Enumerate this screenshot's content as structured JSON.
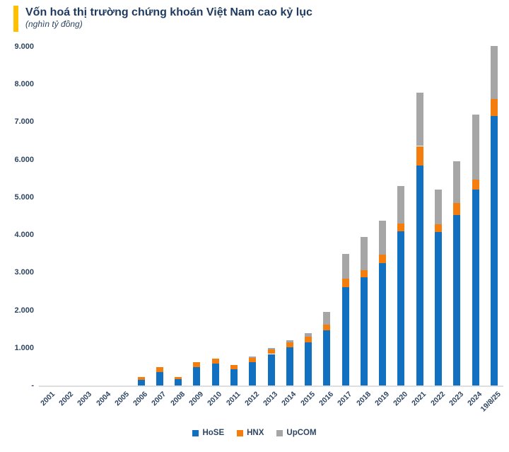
{
  "header": {
    "title": "Vốn hoá thị trường chứng khoán Việt Nam cao kỷ lục",
    "subtitle": "(nghìn tỷ đồng)",
    "accent_color": "#FFC000"
  },
  "chart_data": {
    "type": "bar",
    "stacked": true,
    "title": "Vốn hoá thị trường chứng khoán Việt Nam cao kỷ lục",
    "unit_label": "(nghìn tỷ đồng)",
    "categories": [
      "2001",
      "2002",
      "2003",
      "2004",
      "2005",
      "2006",
      "2007",
      "2008",
      "2009",
      "2010",
      "2011",
      "2012",
      "2013",
      "2014",
      "2015",
      "2016",
      "2017",
      "2018",
      "2019",
      "2020",
      "2021",
      "2022",
      "2023",
      "2024",
      "19/8/25"
    ],
    "series": [
      {
        "name": "HoSE",
        "color": "#1170C0",
        "values": [
          2,
          3,
          2,
          4,
          7,
          148,
          364,
          169,
          494,
          580,
          440,
          620,
          836,
          1010,
          1148,
          1462,
          2610,
          2872,
          3250,
          4094,
          5840,
          4070,
          4525,
          5210,
          7165
        ]
      },
      {
        "name": "HNX",
        "color": "#F57D0D",
        "values": [
          0,
          0,
          0,
          0,
          2,
          73,
          130,
          56,
          125,
          138,
          100,
          113,
          113,
          145,
          156,
          158,
          220,
          188,
          220,
          207,
          520,
          220,
          325,
          250,
          440
        ]
      },
      {
        "name": "UpCOM",
        "color": "#A6A6A6",
        "values": [
          0,
          0,
          0,
          0,
          0,
          0,
          0,
          0,
          0,
          0,
          0,
          45,
          43,
          43,
          81,
          333,
          671,
          878,
          913,
          1004,
          1420,
          920,
          1115,
          1735,
          1410
        ]
      }
    ],
    "ylim": [
      0,
      9000
    ],
    "yticks": [
      {
        "value": 0,
        "label": "-"
      },
      {
        "value": 1000,
        "label": "1.000"
      },
      {
        "value": 2000,
        "label": "2.000"
      },
      {
        "value": 3000,
        "label": "3.000"
      },
      {
        "value": 4000,
        "label": "4.000"
      },
      {
        "value": 5000,
        "label": "5.000"
      },
      {
        "value": 6000,
        "label": "6.000"
      },
      {
        "value": 7000,
        "label": "7.000"
      },
      {
        "value": 8000,
        "label": "8.000"
      },
      {
        "value": 9000,
        "label": "9.000"
      }
    ],
    "grid": false,
    "legend_position": "bottom",
    "axis_line_color": "#DEDEDE",
    "label_color": "#2E4562",
    "title_color": "#1F3A5F"
  }
}
